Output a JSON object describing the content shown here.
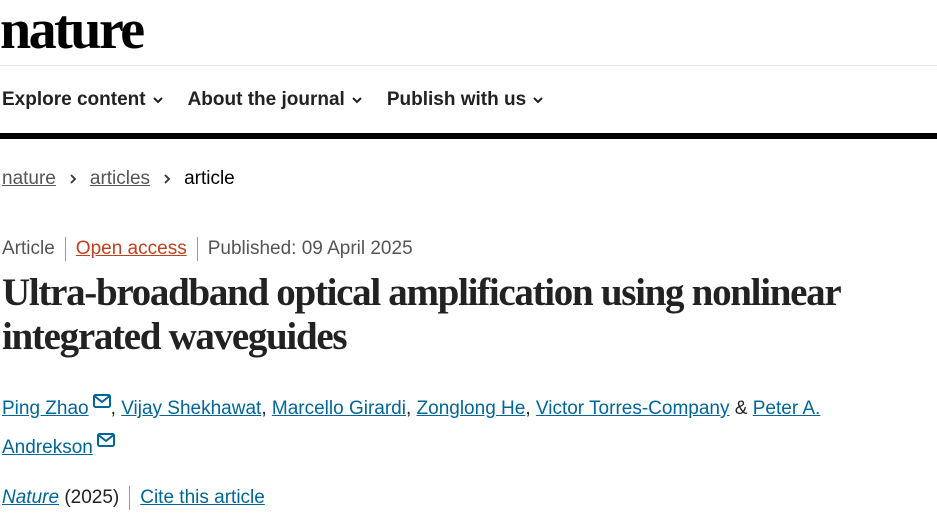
{
  "logo": "nature",
  "nav": [
    {
      "label": "Explore content"
    },
    {
      "label": "About the journal"
    },
    {
      "label": "Publish with us"
    }
  ],
  "breadcrumb": [
    "nature",
    "articles",
    "article"
  ],
  "meta": {
    "type": "Article",
    "access": "Open access",
    "published": "Published: 09 April 2025"
  },
  "title": "Ultra-broadband optical amplification using nonlinear integrated waveguides",
  "authors": [
    {
      "name": "Ping Zhao",
      "email": true
    },
    {
      "name": "Vijay Shekhawat"
    },
    {
      "name": "Marcello Girardi"
    },
    {
      "name": "Zonglong He"
    },
    {
      "name": "Victor Torres-Company"
    },
    {
      "name": "Peter A. Andrekson",
      "email": true
    }
  ],
  "author_sep": ",",
  "author_last_sep": "&",
  "citation": {
    "journal": "Nature",
    "year": "(2025)",
    "cite_label": "Cite this article"
  },
  "colors": {
    "link": "#006699",
    "open_access": "#c0421c"
  }
}
